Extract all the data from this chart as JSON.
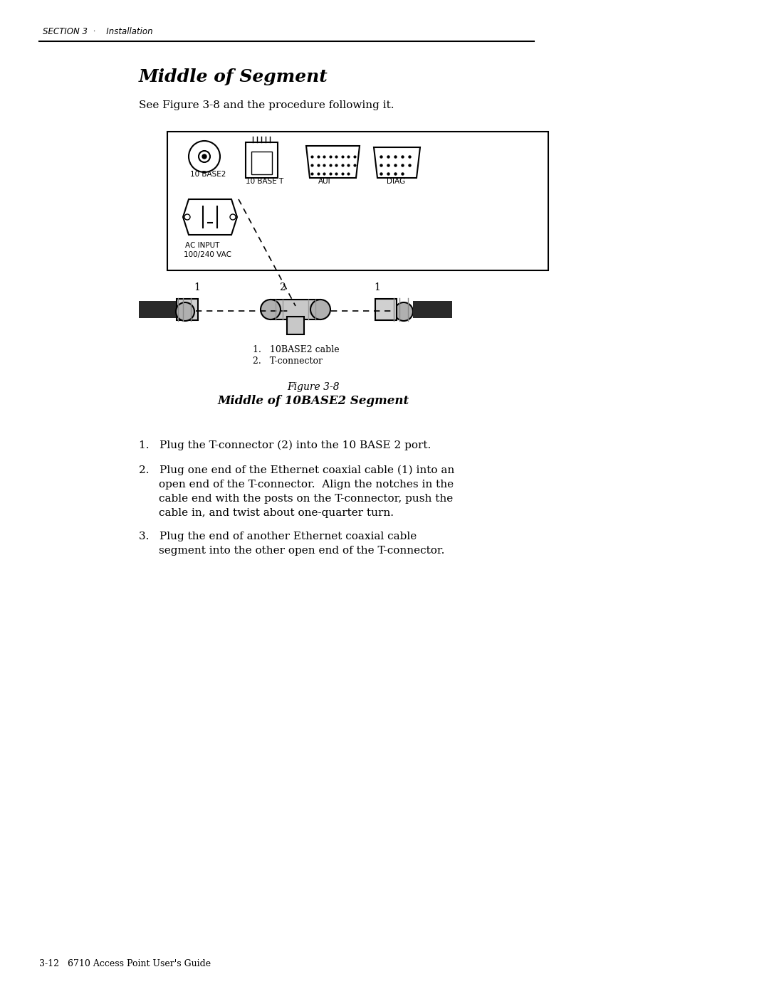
{
  "page_width": 10.8,
  "page_height": 13.97,
  "bg_color": "#ffffff",
  "header_text": "SECTION 3  ·    Installation",
  "title": "Middle of Segment",
  "subtitle": "See Figure 3-8 and the procedure following it.",
  "figure_caption_line1": "Figure 3-8",
  "figure_caption_line2": "Middle of 10BASE2 Segment",
  "legend_item1": "1.   10BASE2 cable",
  "legend_item2": "2.   T-connector",
  "step1": "1.   Plug the T-connector (2) into the 10 BASE 2 port.",
  "step2_line1": "2.   Plug one end of the Ethernet coaxial cable (1) into an",
  "step2_line2": "open end of the T-connector.  Align the notches in the",
  "step2_line3": "cable end with the posts on the T-connector, push the",
  "step2_line4": "cable in, and twist about one-quarter turn.",
  "step3_line1": "3.   Plug the end of another Ethernet coaxial cable",
  "step3_line2": "segment into the other open end of the T-connector.",
  "footer_text": "3-12   6710 Access Point User's Guide",
  "text_color": "#000000",
  "line_color": "#000000",
  "box_color": "#000000"
}
